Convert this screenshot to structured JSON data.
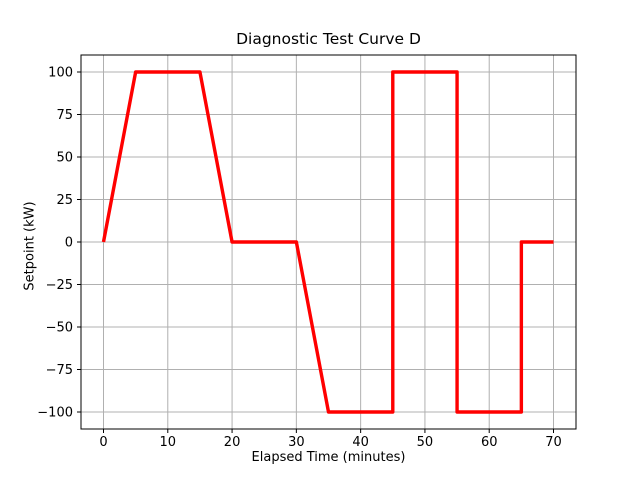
{
  "chart_data": {
    "type": "line",
    "title": "Diagnostic Test Curve D",
    "xlabel": "Elapsed Time (minutes)",
    "ylabel": "Setpoint (kW)",
    "xlim": [
      -3.5,
      73.5
    ],
    "ylim": [
      -110,
      110
    ],
    "xticks": [
      0,
      10,
      20,
      30,
      40,
      50,
      60,
      70
    ],
    "yticks": [
      -100,
      -75,
      -50,
      -25,
      0,
      25,
      50,
      75,
      100
    ],
    "grid": true,
    "legend": false,
    "series": [
      {
        "name": "setpoint",
        "color": "#ff0000",
        "linewidth": 3.4,
        "points": [
          [
            0,
            0
          ],
          [
            5,
            100
          ],
          [
            15,
            100
          ],
          [
            20,
            0
          ],
          [
            30,
            0
          ],
          [
            35,
            -100
          ],
          [
            45,
            -100
          ],
          [
            45,
            100
          ],
          [
            55,
            100
          ],
          [
            55,
            -100
          ],
          [
            65,
            -100
          ],
          [
            65,
            0
          ],
          [
            70,
            0
          ]
        ]
      }
    ]
  },
  "colors": {
    "line": "#ff0000",
    "grid": "#b0b0b0",
    "spine": "#000000",
    "background": "#ffffff",
    "text": "#000000"
  }
}
